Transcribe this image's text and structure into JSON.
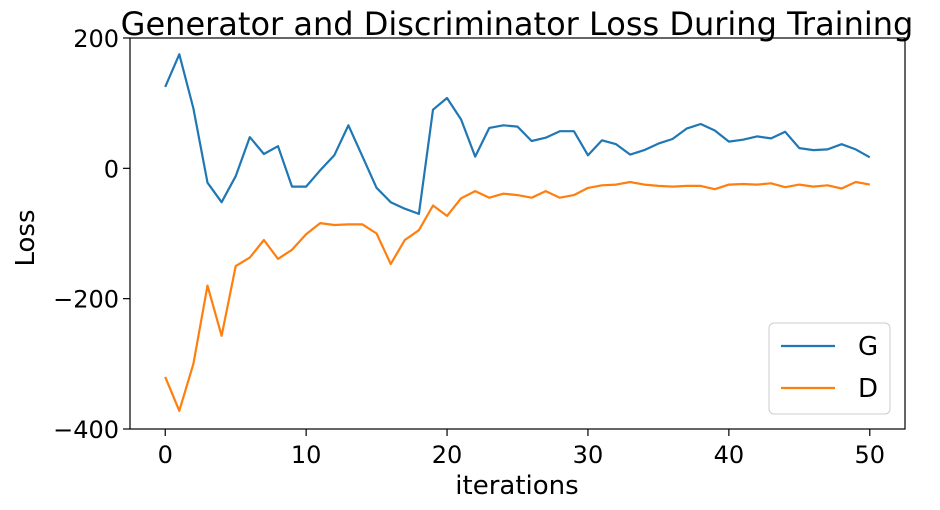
{
  "chart_data": {
    "type": "line",
    "title": "Generator and Discriminator Loss During Training",
    "xlabel": "iterations",
    "ylabel": "Loss",
    "xlim": [
      -2.5,
      52.5
    ],
    "ylim": [
      -400,
      200
    ],
    "x_ticks": [
      0,
      10,
      20,
      30,
      40,
      50
    ],
    "y_ticks": [
      200,
      0,
      -200,
      -400
    ],
    "y_tick_labels": [
      "200",
      "0",
      "−200",
      "−400"
    ],
    "grid": false,
    "legend_position": "lower right",
    "x": [
      0,
      1,
      2,
      3,
      4,
      5,
      6,
      7,
      8,
      9,
      10,
      11,
      12,
      13,
      14,
      15,
      16,
      17,
      18,
      19,
      20,
      21,
      22,
      23,
      24,
      25,
      26,
      27,
      28,
      29,
      30,
      31,
      32,
      33,
      34,
      35,
      36,
      37,
      38,
      39,
      40,
      41,
      42,
      43,
      44,
      45,
      46,
      47,
      48,
      49,
      50
    ],
    "series": [
      {
        "name": "G",
        "color": "#1f77b4",
        "values": [
          125,
          175,
          92,
          -22,
          -52,
          -12,
          48,
          22,
          34,
          -28,
          -28,
          -3,
          20,
          66,
          18,
          -30,
          -52,
          -62,
          -70,
          90,
          108,
          75,
          18,
          62,
          66,
          64,
          42,
          47,
          57,
          57,
          20,
          43,
          37,
          21,
          28,
          38,
          45,
          61,
          68,
          58,
          41,
          44,
          49,
          46,
          56,
          31,
          28,
          29,
          37,
          29,
          17
        ]
      },
      {
        "name": "D",
        "color": "#ff7f0e",
        "values": [
          -320,
          -372,
          -300,
          -180,
          -257,
          -150,
          -137,
          -110,
          -139,
          -125,
          -101,
          -84,
          -87,
          -86,
          -86,
          -100,
          -147,
          -110,
          -95,
          -57,
          -73,
          -46,
          -35,
          -45,
          -39,
          -41,
          -45,
          -35,
          -45,
          -41,
          -30,
          -26,
          -25,
          -21,
          -25,
          -27,
          -28,
          -27,
          -27,
          -32,
          -25,
          -24,
          -25,
          -23,
          -29,
          -25,
          -28,
          -26,
          -31,
          -21,
          -25
        ]
      }
    ]
  }
}
